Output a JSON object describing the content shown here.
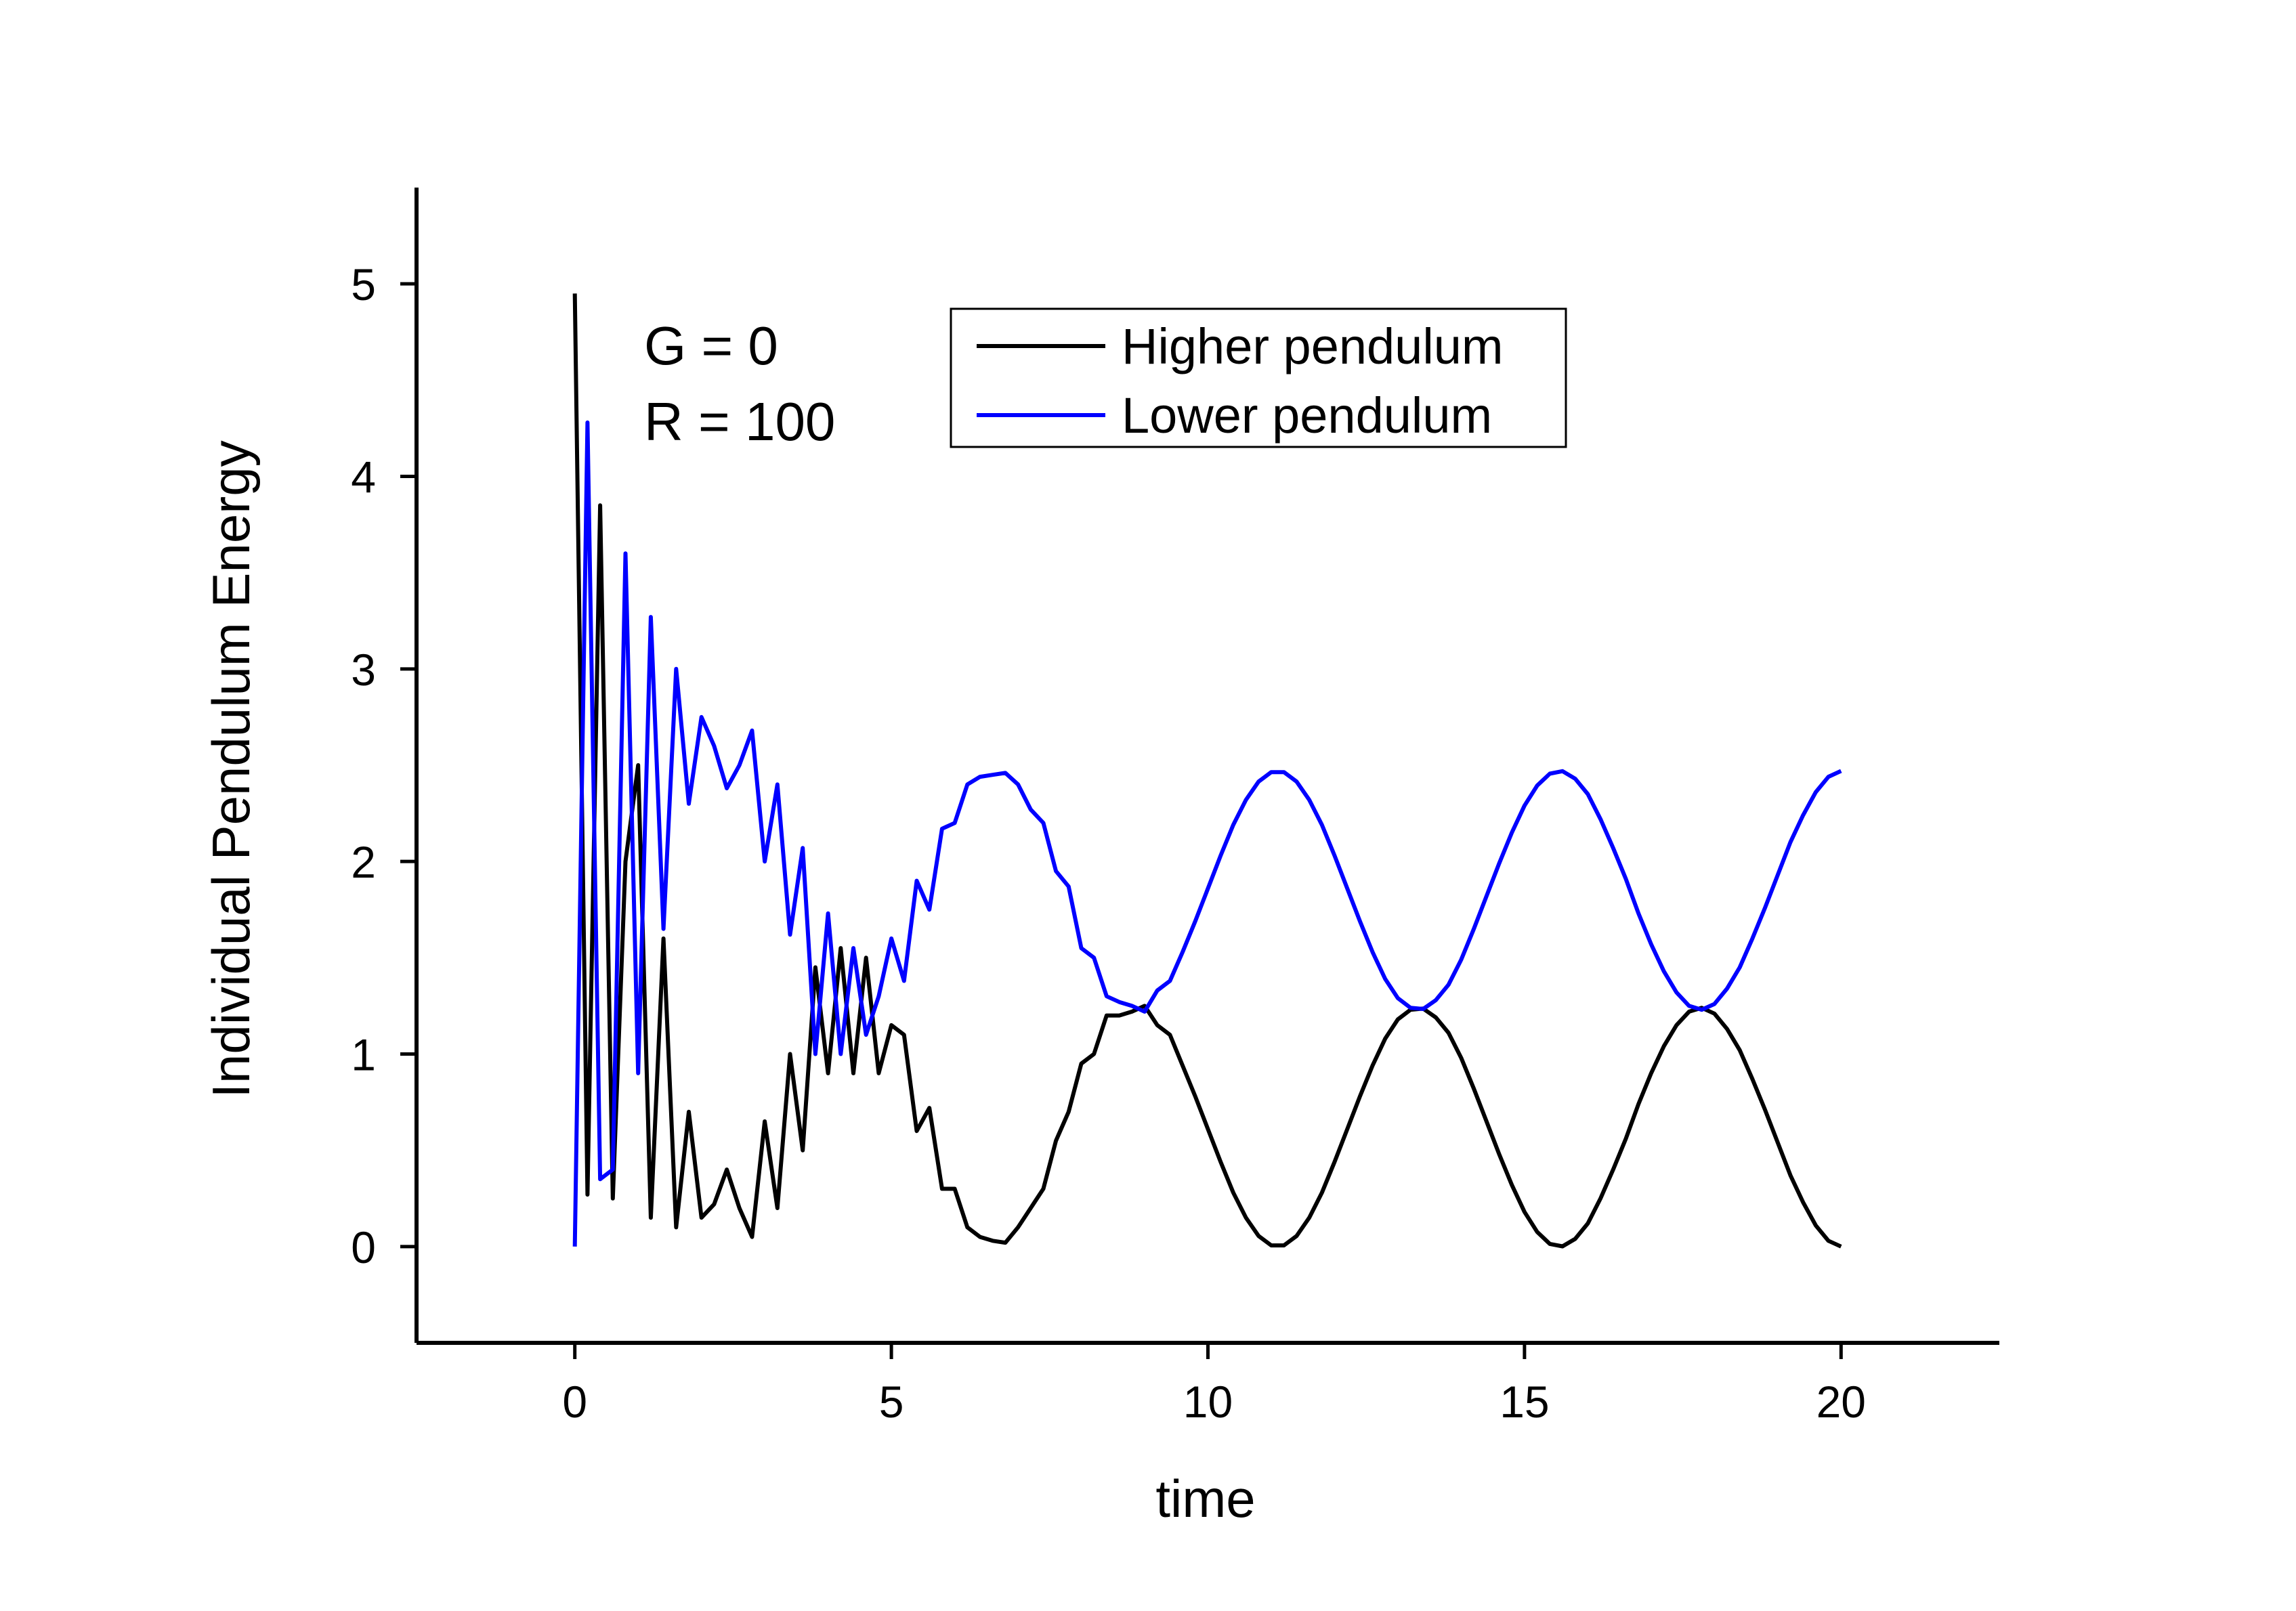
{
  "chart_data": {
    "type": "line",
    "x_label": "time",
    "y_label": "Individual Pendulum Energy",
    "annotations": [
      "G = 0",
      "R = 100"
    ],
    "xlim": [
      -2.5,
      22.5
    ],
    "ylim": [
      -0.5,
      5.5
    ],
    "xticks": [
      0,
      5,
      10,
      15,
      20
    ],
    "yticks": [
      0,
      1,
      2,
      3,
      4,
      5
    ],
    "legend": "top-right",
    "x": [
      0,
      0.2,
      0.4,
      0.6,
      0.8,
      1,
      1.2,
      1.4,
      1.6,
      1.8,
      2,
      2.2,
      2.4,
      2.6,
      2.8,
      3,
      3.2,
      3.4,
      3.6,
      3.8,
      4,
      4.2,
      4.4,
      4.6,
      4.8,
      5,
      5.2,
      5.4,
      5.6,
      5.8,
      6,
      6.2,
      6.4,
      6.6,
      6.8,
      7,
      7.2,
      7.4,
      7.6,
      7.8,
      8,
      8.2,
      8.4,
      8.6,
      8.8,
      9,
      9.2,
      9.4,
      9.6,
      9.8,
      10,
      10.2,
      10.4,
      10.6,
      10.8,
      11,
      11.2,
      11.4,
      11.6,
      11.8,
      12,
      12.2,
      12.4,
      12.6,
      12.8,
      13,
      13.2,
      13.4,
      13.6,
      13.8,
      14,
      14.2,
      14.4,
      14.6,
      14.8,
      15,
      15.2,
      15.4,
      15.6,
      15.8,
      16,
      16.2,
      16.4,
      16.6,
      16.8,
      17,
      17.2,
      17.4,
      17.6,
      17.8,
      18,
      18.2,
      18.4,
      18.6,
      18.8,
      19,
      19.2,
      19.4,
      19.6,
      19.8,
      20
    ],
    "series": [
      {
        "name": "Higher pendulum",
        "color": "#000000",
        "values": [
          4.95,
          0.27,
          3.85,
          0.25,
          2.0,
          2.5,
          0.15,
          1.6,
          0.1,
          0.7,
          0.15,
          0.22,
          0.4,
          0.2,
          0.05,
          0.65,
          0.2,
          1.0,
          0.5,
          1.45,
          0.9,
          1.55,
          0.9,
          1.5,
          0.9,
          1.15,
          1.1,
          0.6,
          0.72,
          0.3,
          0.3,
          0.1,
          0.05,
          0.03,
          0.02,
          0.1,
          0.2,
          0.3,
          0.55,
          0.7,
          0.95,
          1.0,
          1.2,
          1.2,
          1.22,
          1.25,
          1.15,
          1.1,
          0.94,
          0.78,
          0.61,
          0.44,
          0.28,
          0.15,
          0.055,
          0.006,
          0.006,
          0.055,
          0.15,
          0.28,
          0.44,
          0.61,
          0.78,
          0.94,
          1.08,
          1.18,
          1.23,
          1.236,
          1.19,
          1.11,
          0.98,
          0.82,
          0.65,
          0.48,
          0.32,
          0.18,
          0.076,
          0.014,
          0.001,
          0.04,
          0.12,
          0.25,
          0.4,
          0.56,
          0.74,
          0.9,
          1.04,
          1.15,
          1.22,
          1.24,
          1.21,
          1.13,
          1.02,
          0.87,
          0.71,
          0.54,
          0.37,
          0.23,
          0.11,
          0.03,
          0
        ]
      },
      {
        "name": "Lower pendulum",
        "color": "#0000ff",
        "values": [
          0,
          4.28,
          0.35,
          0.4,
          3.6,
          0.9,
          3.27,
          1.65,
          3.0,
          2.3,
          2.75,
          2.6,
          2.38,
          2.5,
          2.68,
          2.0,
          2.4,
          1.62,
          2.07,
          1.0,
          1.73,
          1.0,
          1.55,
          1.1,
          1.3,
          1.6,
          1.38,
          1.9,
          1.75,
          2.17,
          2.2,
          2.4,
          2.44,
          2.45,
          2.46,
          2.4,
          2.27,
          2.2,
          1.95,
          1.87,
          1.55,
          1.5,
          1.3,
          1.27,
          1.25,
          1.22,
          1.33,
          1.38,
          1.53,
          1.69,
          1.86,
          2.03,
          2.19,
          2.32,
          2.415,
          2.464,
          2.464,
          2.415,
          2.32,
          2.19,
          2.03,
          1.86,
          1.69,
          1.53,
          1.39,
          1.29,
          1.24,
          1.234,
          1.28,
          1.36,
          1.49,
          1.65,
          1.82,
          1.99,
          2.15,
          2.29,
          2.394,
          2.456,
          2.469,
          2.43,
          2.35,
          2.22,
          2.07,
          1.91,
          1.73,
          1.57,
          1.43,
          1.32,
          1.25,
          1.23,
          1.26,
          1.34,
          1.45,
          1.6,
          1.76,
          1.93,
          2.1,
          2.24,
          2.36,
          2.44,
          2.47
        ]
      }
    ]
  }
}
